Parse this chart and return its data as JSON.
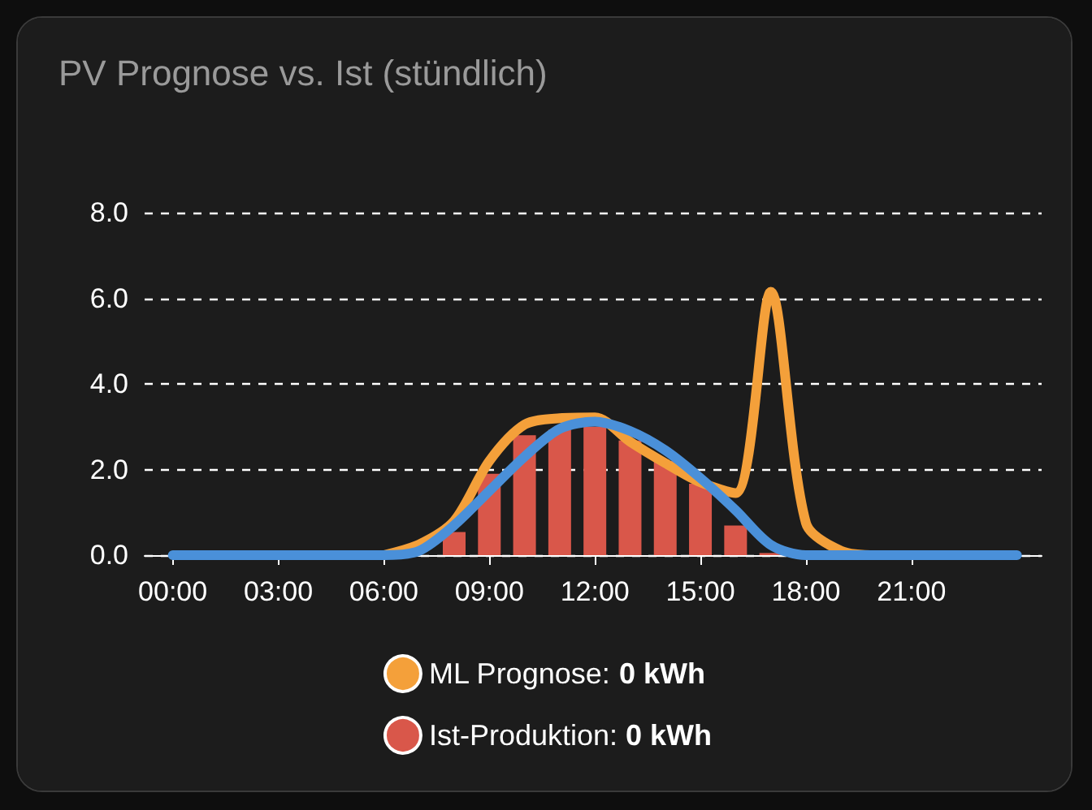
{
  "chart_data": {
    "type": "line",
    "title": "PV Prognose vs. Ist (stündlich)",
    "xlim": [
      -0.8,
      24.7
    ],
    "xticks": [
      {
        "value": 0,
        "label": "00:00"
      },
      {
        "value": 3,
        "label": "03:00"
      },
      {
        "value": 6,
        "label": "06:00"
      },
      {
        "value": 9,
        "label": "09:00"
      },
      {
        "value": 12,
        "label": "12:00"
      },
      {
        "value": 15,
        "label": "15:00"
      },
      {
        "value": 18,
        "label": "18:00"
      },
      {
        "value": 21,
        "label": "21:00"
      }
    ],
    "ylim": [
      0,
      8
    ],
    "yticks": [
      {
        "value": 0,
        "label": "0.0"
      },
      {
        "value": 2,
        "label": "2.0"
      },
      {
        "value": 4,
        "label": "4.0"
      },
      {
        "value": 6,
        "label": "6.0"
      },
      {
        "value": 8,
        "label": "8.0"
      }
    ],
    "grid": "y",
    "legend": "bottom",
    "marker": "none",
    "line_style": "solid",
    "series": [
      {
        "name": "ML Prognose: 0 kWh",
        "color": "#f4a03a",
        "x": [
          6,
          7,
          8,
          9,
          10,
          11,
          12,
          13,
          14,
          15,
          16,
          17,
          18,
          19,
          20,
          21
        ],
        "values": [
          0,
          0.25,
          0.8,
          2.2,
          3.05,
          3.2,
          3.22,
          2.65,
          2.15,
          1.7,
          1.45,
          6.15,
          0.75,
          0.1,
          0,
          0
        ]
      },
      {
        "color": "#4a90d9",
        "x": [
          0,
          1,
          2,
          3,
          4,
          5,
          6,
          7,
          8,
          9,
          10,
          11,
          12,
          13,
          14,
          15,
          16,
          17,
          18,
          19,
          20,
          21,
          22,
          23,
          24
        ],
        "values": [
          0,
          0,
          0,
          0,
          0,
          0,
          0,
          0.1,
          0.7,
          1.5,
          2.3,
          2.95,
          3.12,
          2.9,
          2.45,
          1.8,
          1.05,
          0.24,
          0,
          0,
          0,
          0,
          0,
          0,
          0
        ]
      },
      {
        "type": "bar",
        "name": "Ist-Produktion: 0 kWh",
        "color": "#d9574a",
        "x": [
          8,
          9,
          10,
          11,
          12,
          13,
          14,
          15,
          16,
          17
        ],
        "values": [
          0.54,
          1.9,
          2.8,
          2.93,
          3.0,
          2.68,
          2.2,
          1.67,
          0.69,
          0.05
        ]
      }
    ]
  }
}
